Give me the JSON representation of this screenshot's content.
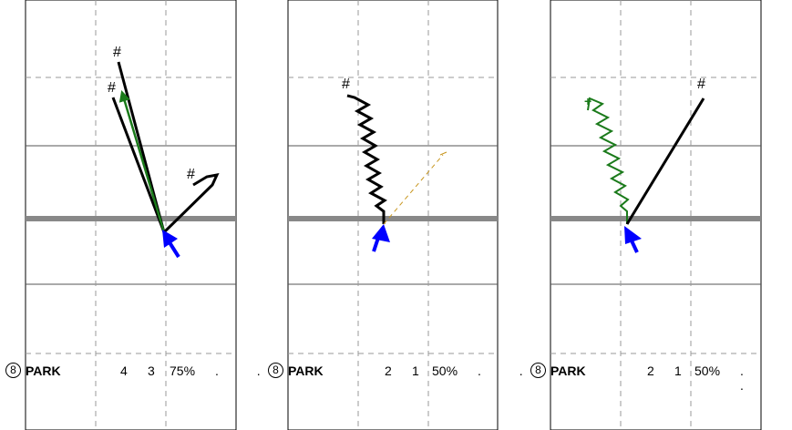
{
  "panels": [
    {
      "formation_number": "8",
      "formation_name": "PARK",
      "stat_a": "4",
      "stat_b": "3",
      "percent": "75%",
      "dots": ". ."
    },
    {
      "formation_number": "8",
      "formation_name": "PARK",
      "stat_a": "2",
      "stat_b": "1",
      "percent": "50%",
      "dots": ". ."
    },
    {
      "formation_number": "8",
      "formation_name": "PARK",
      "stat_a": "2",
      "stat_b": "1",
      "percent": "50%",
      "dots": ". ."
    }
  ],
  "route_markers": {
    "hash": "#",
    "plus": "+"
  },
  "colors": {
    "route_primary": "#000000",
    "route_secondary": "#1a7a1a",
    "motion_arrow": "#0000ff",
    "option_route": "#c8961e",
    "line_of_scrimmage": "#888888",
    "grid": "#888888"
  }
}
